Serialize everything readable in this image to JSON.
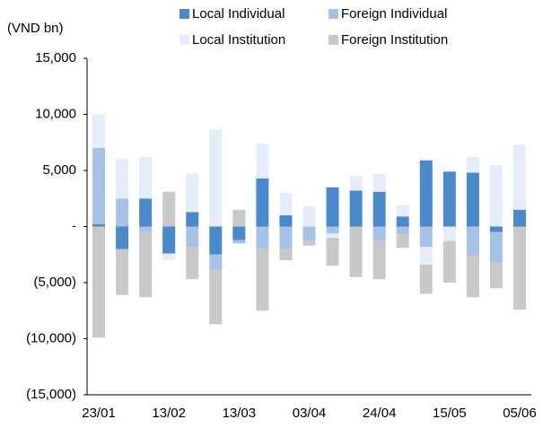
{
  "chart_data": {
    "type": "stacked_bar",
    "y_label": "(VND bn)",
    "categories": [
      "23/01",
      null,
      null,
      "13/02",
      null,
      null,
      "13/03",
      null,
      null,
      "03/04",
      null,
      null,
      "24/04",
      null,
      null,
      "15/05",
      null,
      null,
      "05/06"
    ],
    "series": [
      {
        "name": "Local Individual",
        "color": "#4a89cc",
        "values": [
          200,
          -2000,
          2500,
          -2400,
          1300,
          -2500,
          -1200,
          4300,
          1000,
          0,
          3500,
          3200,
          3100,
          900,
          5900,
          4900,
          4800,
          -500,
          1500
        ]
      },
      {
        "name": "Foreign Individual",
        "color": "#a7c2e8",
        "values": [
          6800,
          2500,
          -500,
          0,
          -1800,
          -1300,
          -300,
          -2000,
          -2000,
          -1300,
          -600,
          0,
          -1300,
          -700,
          -1800,
          0,
          -2600,
          -2700,
          0
        ]
      },
      {
        "name": "Local Institution",
        "color": "#e4edf9",
        "values": [
          3000,
          3500,
          3700,
          -600,
          3400,
          8700,
          0,
          3100,
          2000,
          1800,
          -400,
          1300,
          1600,
          1000,
          -1600,
          -1300,
          1400,
          5500,
          5800
        ]
      },
      {
        "name": "Foreign Institution",
        "color": "#c9c9c9",
        "values": [
          -9900,
          -4100,
          -5800,
          3100,
          -2900,
          -4900,
          1500,
          -5500,
          -1000,
          -400,
          -2500,
          -4500,
          -3400,
          -1200,
          -2600,
          -3700,
          -3700,
          -2300,
          -7400
        ]
      }
    ],
    "ylim": [
      -15000,
      15000
    ],
    "yticks": [
      {
        "value": -15000,
        "label": "(15,000)"
      },
      {
        "value": -10000,
        "label": "(10,000)"
      },
      {
        "value": -5000,
        "label": "(5,000)"
      },
      {
        "value": 0,
        "label": "-"
      },
      {
        "value": 5000,
        "label": "5,000"
      },
      {
        "value": 10000,
        "label": "10,000"
      },
      {
        "value": 15000,
        "label": "15,000"
      }
    ],
    "grid": false,
    "legend": "top"
  }
}
